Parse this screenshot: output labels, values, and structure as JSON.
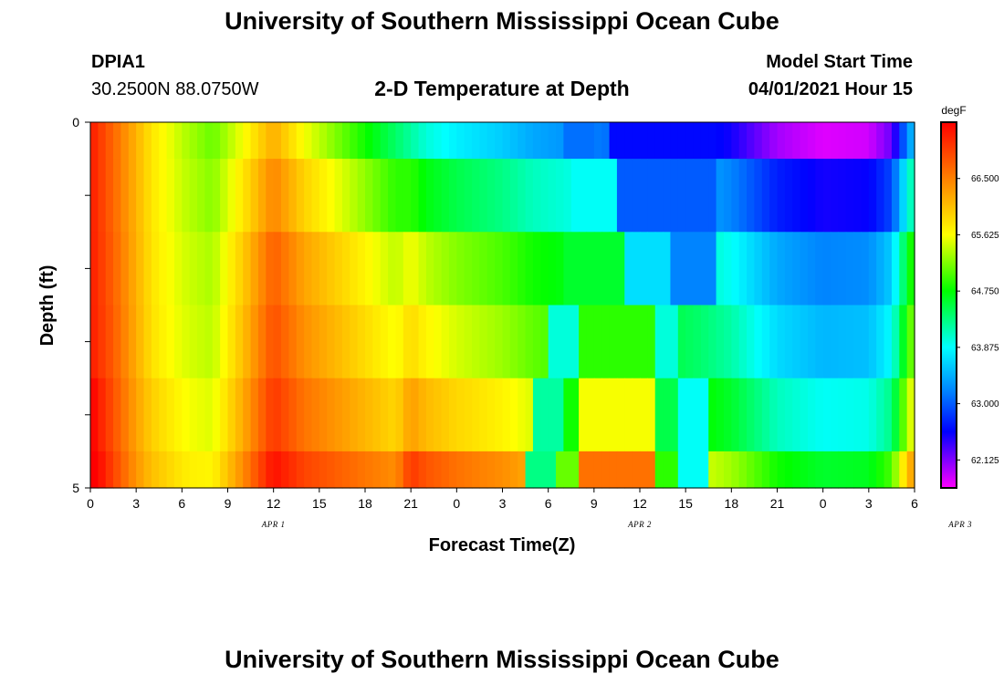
{
  "header": {
    "title": "University of Southern Mississippi Ocean Cube",
    "station_id": "DPIA1",
    "coordinates": "30.2500N  88.0750W",
    "plot_title": "2-D Temperature at Depth",
    "model_start_label": "Model Start Time",
    "model_start_value": "04/01/2021 Hour 15"
  },
  "footer": {
    "title": "University of Southern Mississippi Ocean Cube"
  },
  "chart_data": {
    "type": "heatmap",
    "title": "2-D Temperature at Depth",
    "xlabel": "Forecast Time(Z)",
    "ylabel": "Depth (ft)",
    "x_tick_labels": [
      "0",
      "3",
      "6",
      "9",
      "12",
      "15",
      "18",
      "21",
      "0",
      "3",
      "6",
      "9",
      "12",
      "15",
      "18",
      "21",
      "0",
      "3",
      "6"
    ],
    "date_labels": [
      {
        "label": "APR 1",
        "at_hour": 12
      },
      {
        "label": "APR 2",
        "at_hour": 36
      },
      {
        "label": "APR 3",
        "at_hour": 57
      }
    ],
    "xlim_hours": [
      0,
      54
    ],
    "y_tick_labels": [
      "0",
      "5"
    ],
    "ylim_ft": [
      0,
      5
    ],
    "colorbar": {
      "unit": "degF",
      "min": 61.69,
      "max": 67.375,
      "tick_labels": [
        "66.500",
        "65.625",
        "64.750",
        "63.875",
        "63.000",
        "62.125"
      ],
      "tick_values": [
        66.5,
        65.625,
        64.75,
        63.875,
        63.0,
        62.125
      ]
    },
    "layers_ft": [
      [
        0,
        0.5
      ],
      [
        0.5,
        1.5
      ],
      [
        1.5,
        2.5
      ],
      [
        2.5,
        3.5
      ],
      [
        3.5,
        4.5
      ],
      [
        4.5,
        5
      ]
    ],
    "base_profile": [
      {
        "h": 0,
        "t": 67.2
      },
      {
        "h": 2,
        "t": 66.5
      },
      {
        "h": 4,
        "t": 65.8
      },
      {
        "h": 6,
        "t": 65.4
      },
      {
        "h": 8,
        "t": 65.1
      },
      {
        "h": 10,
        "t": 65.6
      },
      {
        "h": 12,
        "t": 66.2
      },
      {
        "h": 14,
        "t": 65.6
      },
      {
        "h": 17,
        "t": 65.0
      },
      {
        "h": 20,
        "t": 64.4
      },
      {
        "h": 22,
        "t": 64.0
      },
      {
        "h": 24,
        "t": 63.8
      },
      {
        "h": 27,
        "t": 63.6
      },
      {
        "h": 29,
        "t": 63.4
      },
      {
        "h": 31,
        "t": 63.3
      },
      {
        "h": 34,
        "t": 63.1
      },
      {
        "h": 37,
        "t": 62.9
      },
      {
        "h": 40,
        "t": 62.7
      },
      {
        "h": 42,
        "t": 62.5
      },
      {
        "h": 45,
        "t": 62.0
      },
      {
        "h": 48,
        "t": 61.8
      },
      {
        "h": 51,
        "t": 61.85
      },
      {
        "h": 52.5,
        "t": 62.2
      },
      {
        "h": 53.5,
        "t": 63.2
      },
      {
        "h": 54,
        "t": 63.6
      }
    ],
    "depth_offsets": [
      [
        0,
        0,
        0.0,
        0.35
      ],
      [
        1.5,
        0,
        0.2,
        0.25
      ],
      [
        3,
        0,
        0.1,
        0.2
      ],
      [
        4.5,
        0,
        0.1,
        0.3
      ],
      [
        6.5,
        1,
        0.1,
        0.2
      ],
      [
        9,
        3,
        0.05,
        0.1
      ],
      [
        13,
        6,
        0.0,
        0.0
      ],
      [
        20,
        10,
        0.0,
        0.0
      ],
      [
        21,
        14,
        0,
        0
      ]
    ],
    "anomalies": [
      {
        "layer": 0,
        "h0": 34,
        "h1": 41,
        "t": 62.6
      },
      {
        "layer": 0,
        "h0": 31,
        "h1": 33,
        "t": 63.1
      },
      {
        "layer": 1,
        "h0": 31.5,
        "h1": 34.5,
        "t": 63.9
      },
      {
        "layer": 1,
        "h0": 34.5,
        "h1": 41,
        "t": 63.0
      },
      {
        "layer": 2,
        "h0": 31,
        "h1": 35,
        "t": 64.6
      },
      {
        "layer": 2,
        "h0": 35,
        "h1": 38,
        "t": 63.7
      },
      {
        "layer": 2,
        "h0": 38,
        "h1": 41,
        "t": 63.2
      },
      {
        "layer": 3,
        "h0": 30,
        "h1": 32,
        "t": 64.0
      },
      {
        "layer": 3,
        "h0": 32,
        "h1": 37,
        "t": 64.9
      },
      {
        "layer": 3,
        "h0": 37,
        "h1": 38.5,
        "t": 64.0
      },
      {
        "layer": 4,
        "h0": 29,
        "h1": 31,
        "t": 64.2
      },
      {
        "layer": 4,
        "h0": 31,
        "h1": 32,
        "t": 64.8
      },
      {
        "layer": 4,
        "h0": 32,
        "h1": 37,
        "t": 65.6
      },
      {
        "layer": 4,
        "h0": 37,
        "h1": 38.5,
        "t": 64.5
      },
      {
        "layer": 4,
        "h0": 38.5,
        "h1": 40.5,
        "t": 63.9
      },
      {
        "layer": 5,
        "h0": 28.5,
        "h1": 30.5,
        "t": 64.3
      },
      {
        "layer": 5,
        "h0": 30.5,
        "h1": 32,
        "t": 65.1
      },
      {
        "layer": 5,
        "h0": 32,
        "h1": 37,
        "t": 66.6
      },
      {
        "layer": 5,
        "h0": 37,
        "h1": 38.5,
        "t": 64.9
      },
      {
        "layer": 5,
        "h0": 38.5,
        "h1": 40.5,
        "t": 63.9
      }
    ]
  }
}
